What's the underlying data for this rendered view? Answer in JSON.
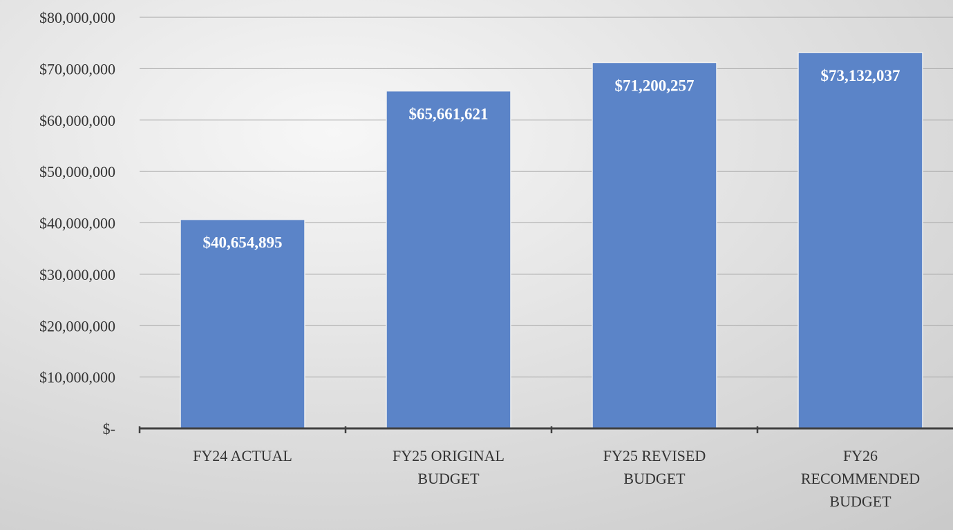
{
  "chart_data": {
    "type": "bar",
    "categories": [
      [
        "FY24 ACTUAL"
      ],
      [
        "FY25 ORIGINAL",
        "BUDGET"
      ],
      [
        "FY25 REVISED",
        "BUDGET"
      ],
      [
        "FY26",
        "RECOMMENDED",
        "BUDGET"
      ]
    ],
    "values": [
      40654895,
      65661621,
      71200257,
      73132037
    ],
    "data_labels": [
      "$40,654,895",
      "$65,661,621",
      "$71,200,257",
      "$73,132,037"
    ],
    "ylim": [
      0,
      80000000
    ],
    "yticks": [
      0,
      10000000,
      20000000,
      30000000,
      40000000,
      50000000,
      60000000,
      70000000,
      80000000
    ],
    "ytick_labels": [
      "$-",
      "$10,000,000",
      "$20,000,000",
      "$30,000,000",
      "$40,000,000",
      "$50,000,000",
      "$60,000,000",
      "$70,000,000",
      "$80,000,000"
    ],
    "title": "",
    "xlabel": "",
    "ylabel": "",
    "grid": true,
    "legend": "none",
    "colors": {
      "bar": "#5b84c8",
      "bar_edge": "#f0f0f0",
      "background_light": "#f7f7f7",
      "background_dark": "#c9c9c9",
      "gridline": "#a6a6a6",
      "axis": "#404040"
    }
  }
}
